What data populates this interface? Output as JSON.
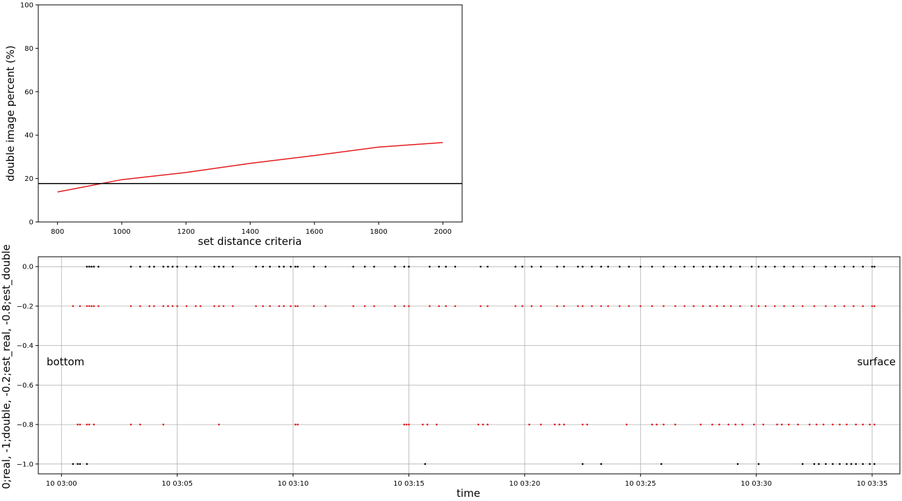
{
  "chart_data": [
    {
      "type": "line",
      "xlabel": "set distance criteria",
      "ylabel": "double image percent (%)",
      "xlim": [
        740,
        2060
      ],
      "ylim": [
        0,
        100
      ],
      "xticks": [
        800,
        1000,
        1200,
        1400,
        1600,
        1800,
        2000
      ],
      "yticks": [
        0,
        20,
        40,
        60,
        80,
        100
      ],
      "grid": false,
      "series": [
        {
          "color": "#e31a1c",
          "x": [
            800,
            1000,
            1200,
            1400,
            1600,
            1800,
            2000
          ],
          "y": [
            13.8,
            19.5,
            22.8,
            27.0,
            30.6,
            34.5,
            36.6
          ]
        }
      ],
      "hline": {
        "y": 17.7,
        "color": "#000000"
      }
    },
    {
      "type": "scatter",
      "xlabel": "time",
      "ylabel": "0;real, -1;double, -0.2;est_real, -0.8;est_double",
      "xlim_minutes": [
        -1.0,
        36.2
      ],
      "ylim": [
        -1.05,
        0.05
      ],
      "yticks": [
        0.0,
        -0.2,
        -0.4,
        -0.6,
        -0.8,
        -1.0
      ],
      "ytick_labels": [
        "0.0",
        "−0.2",
        "−0.4",
        "−0.6",
        "−0.8",
        "−1.0"
      ],
      "xtick_minutes": [
        0,
        5,
        10,
        15,
        20,
        25,
        30,
        35
      ],
      "xtick_labels": [
        "10 03:00",
        "10 03:05",
        "10 03:10",
        "10 03:15",
        "10 03:20",
        "10 03:25",
        "10 03:30",
        "10 03:35"
      ],
      "grid": true,
      "annotations": {
        "left": "bottom",
        "right": "surface"
      },
      "series": [
        {
          "y": 0.0,
          "color": "#000000",
          "times": [
            1.1,
            1.2,
            1.3,
            1.4,
            1.6,
            3.0,
            3.4,
            3.8,
            4.0,
            4.4,
            4.6,
            4.8,
            5.0,
            5.4,
            5.8,
            6.0,
            6.6,
            6.8,
            7.0,
            7.4,
            8.4,
            8.7,
            9.0,
            9.4,
            9.6,
            9.9,
            10.1,
            10.2,
            10.9,
            11.4,
            12.6,
            13.1,
            13.5,
            14.4,
            14.8,
            15.0,
            15.9,
            16.3,
            16.6,
            17.0,
            18.1,
            18.4,
            19.6,
            19.9,
            20.3,
            20.7,
            21.4,
            21.7,
            22.3,
            22.5,
            22.9,
            23.3,
            23.6,
            24.1,
            24.5,
            25.0,
            25.5,
            26.0,
            26.5,
            26.9,
            27.3,
            27.7,
            28.0,
            28.3,
            28.6,
            28.9,
            29.3,
            29.8,
            30.1,
            30.4,
            30.8,
            31.2,
            31.6,
            32.0,
            32.5,
            33.0,
            33.4,
            33.8,
            34.2,
            34.6,
            35.0,
            35.1
          ]
        },
        {
          "y": -0.2,
          "color": "#e31a1c",
          "times": [
            0.5,
            0.8,
            1.1,
            1.2,
            1.3,
            1.4,
            1.6,
            3.0,
            3.4,
            3.8,
            4.0,
            4.4,
            4.6,
            4.8,
            5.0,
            5.4,
            5.8,
            6.0,
            6.6,
            6.8,
            7.0,
            7.4,
            8.4,
            8.7,
            9.0,
            9.4,
            9.6,
            9.9,
            10.1,
            10.2,
            10.9,
            11.4,
            12.6,
            13.1,
            13.5,
            14.4,
            14.8,
            15.0,
            15.9,
            16.3,
            16.6,
            17.0,
            18.1,
            18.4,
            19.6,
            19.9,
            20.3,
            20.7,
            21.4,
            21.7,
            22.3,
            22.5,
            22.9,
            23.3,
            23.6,
            24.1,
            24.5,
            25.0,
            25.5,
            26.0,
            26.5,
            26.9,
            27.3,
            27.7,
            28.0,
            28.3,
            28.6,
            28.9,
            29.3,
            29.8,
            30.1,
            30.4,
            30.8,
            31.2,
            31.6,
            32.0,
            32.5,
            33.0,
            33.4,
            33.8,
            34.2,
            34.6,
            35.0,
            35.1
          ]
        },
        {
          "y": -0.8,
          "color": "#e31a1c",
          "times": [
            0.7,
            0.8,
            1.1,
            1.2,
            1.4,
            3.0,
            3.4,
            4.4,
            6.8,
            10.1,
            10.2,
            14.8,
            14.9,
            15.0,
            15.6,
            15.8,
            16.2,
            18.0,
            18.2,
            18.4,
            20.2,
            20.7,
            21.3,
            21.5,
            21.7,
            22.5,
            22.7,
            24.4,
            25.5,
            25.7,
            26.0,
            26.5,
            27.6,
            28.1,
            28.4,
            28.8,
            29.1,
            29.4,
            29.9,
            30.3,
            30.9,
            31.1,
            31.4,
            31.8,
            32.3,
            32.6,
            32.9,
            33.3,
            33.6,
            33.9,
            34.3,
            34.6,
            34.9,
            35.1
          ]
        },
        {
          "y": -1.0,
          "color": "#000000",
          "times": [
            0.5,
            0.7,
            0.8,
            1.1,
            15.7,
            22.5,
            23.3,
            25.9,
            29.2,
            30.1,
            32.0,
            32.5,
            32.7,
            33.0,
            33.3,
            33.6,
            33.9,
            34.1,
            34.3,
            34.6,
            34.9,
            35.1
          ]
        }
      ]
    }
  ]
}
